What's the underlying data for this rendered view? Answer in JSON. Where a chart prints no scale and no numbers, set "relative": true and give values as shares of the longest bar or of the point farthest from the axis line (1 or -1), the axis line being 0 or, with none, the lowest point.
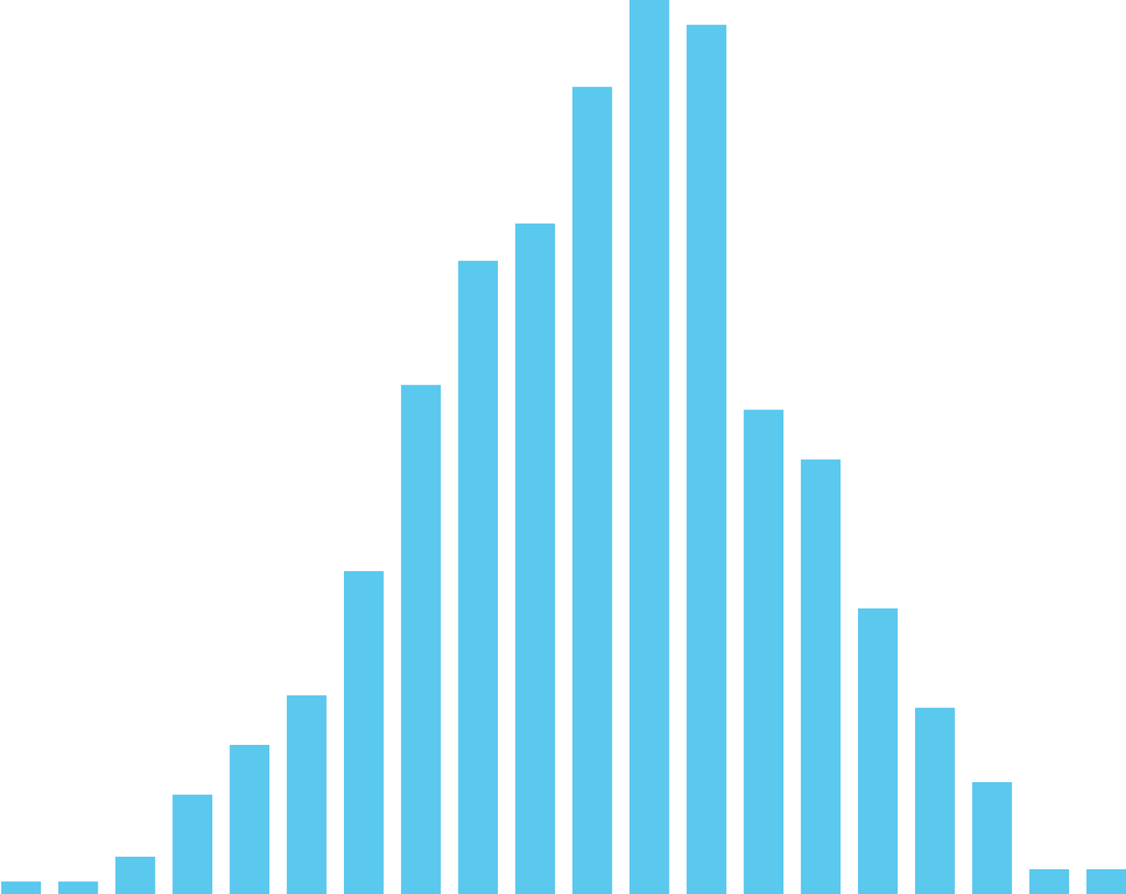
{
  "chart_data": {
    "type": "bar",
    "relative": true,
    "color": "#5bc8ee",
    "categories": [
      null,
      null,
      null,
      null,
      null,
      null,
      null,
      null,
      null,
      null,
      null,
      null,
      null,
      null,
      null,
      null,
      null,
      null,
      null,
      null
    ],
    "values": [
      0.0139,
      0.0139,
      0.0417,
      0.1111,
      0.1667,
      0.2222,
      0.3611,
      0.5694,
      0.7083,
      0.75,
      0.9028,
      1,
      0.9722,
      0.5417,
      0.4861,
      0.3194,
      0.2083,
      0.125,
      0.0278,
      0.0278
    ]
  }
}
